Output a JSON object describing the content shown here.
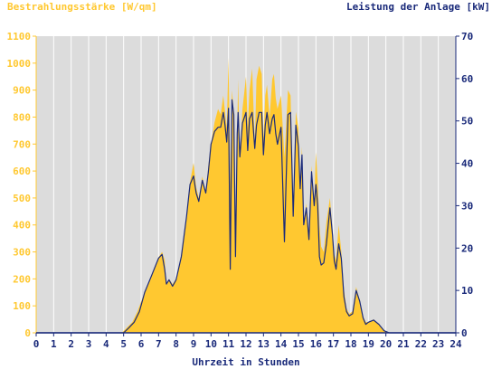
{
  "chart_data": {
    "type": "area",
    "title_left": "Bestrahlungsstärke [W/qm]",
    "title_right": "Leistung der Anlage [kW]",
    "xlabel": "Uhrzeit in Stunden",
    "xlim": [
      0,
      24
    ],
    "ylim_left": [
      0,
      1100
    ],
    "ylim_right": [
      0,
      70
    ],
    "x_ticks": [
      "0",
      "1",
      "2",
      "3",
      "4",
      "5",
      "6",
      "7",
      "8",
      "9",
      "10",
      "11",
      "12",
      "13",
      "14",
      "15",
      "16",
      "17",
      "18",
      "19",
      "20",
      "21",
      "22",
      "23",
      "24"
    ],
    "y_ticks_left": [
      "0",
      "100",
      "200",
      "300",
      "400",
      "500",
      "600",
      "700",
      "800",
      "900",
      "1000",
      "1100"
    ],
    "y_ticks_right": [
      "0",
      "10",
      "20",
      "30",
      "40",
      "50",
      "60",
      "70"
    ],
    "colors": {
      "irradiance": "#ffc830",
      "power": "#1a2a7a",
      "plot_bg": "#dcdcdc",
      "grid": "#ffffff"
    },
    "grid": true,
    "series": [
      {
        "name": "Bestrahlungsstärke [W/qm]",
        "axis": "left",
        "x": [
          0,
          4.9,
          5.2,
          5.5,
          5.8,
          6.2,
          6.6,
          7.0,
          7.2,
          7.35,
          7.45,
          7.6,
          7.8,
          8.0,
          8.3,
          8.6,
          8.8,
          9.0,
          9.15,
          9.3,
          9.5,
          9.7,
          9.85,
          10.0,
          10.2,
          10.4,
          10.55,
          10.7,
          10.8,
          10.9,
          11.0,
          11.1,
          11.2,
          11.3,
          11.4,
          11.5,
          11.55,
          11.65,
          11.8,
          12.0,
          12.1,
          12.2,
          12.35,
          12.5,
          12.6,
          12.75,
          12.9,
          13.0,
          13.1,
          13.2,
          13.35,
          13.5,
          13.6,
          13.7,
          13.8,
          14.0,
          14.2,
          14.4,
          14.55,
          14.7,
          14.85,
          15.0,
          15.1,
          15.2,
          15.3,
          15.45,
          15.6,
          15.75,
          15.9,
          16.0,
          16.1,
          16.2,
          16.3,
          16.45,
          16.6,
          16.8,
          16.95,
          17.05,
          17.15,
          17.3,
          17.45,
          17.6,
          17.75,
          17.9,
          18.1,
          18.3,
          18.5,
          18.7,
          18.85,
          19.0,
          19.3,
          19.6,
          19.9,
          20.2,
          20.4,
          24
        ],
        "values": [
          0,
          0,
          20,
          40,
          80,
          150,
          210,
          280,
          300,
          270,
          180,
          200,
          180,
          200,
          280,
          420,
          560,
          630,
          540,
          500,
          580,
          520,
          620,
          700,
          780,
          830,
          810,
          880,
          820,
          760,
          1020,
          560,
          900,
          820,
          300,
          740,
          940,
          650,
          830,
          950,
          760,
          900,
          980,
          700,
          940,
          990,
          960,
          720,
          880,
          920,
          800,
          940,
          960,
          870,
          830,
          880,
          650,
          900,
          880,
          430,
          820,
          760,
          550,
          690,
          410,
          480,
          360,
          620,
          480,
          670,
          560,
          400,
          320,
          300,
          410,
          500,
          380,
          290,
          270,
          400,
          300,
          160,
          90,
          70,
          80,
          170,
          120,
          60,
          40,
          40,
          50,
          30,
          10,
          0,
          0,
          0
        ]
      },
      {
        "name": "Leistung der Anlage [kW]",
        "axis": "right",
        "x": [
          0,
          5.0,
          5.3,
          5.6,
          5.9,
          6.2,
          6.6,
          7.0,
          7.2,
          7.35,
          7.45,
          7.6,
          7.8,
          8.0,
          8.3,
          8.6,
          8.8,
          9.0,
          9.15,
          9.3,
          9.5,
          9.7,
          9.85,
          10.0,
          10.2,
          10.4,
          10.55,
          10.7,
          10.8,
          10.9,
          11.0,
          11.1,
          11.2,
          11.3,
          11.4,
          11.5,
          11.55,
          11.65,
          11.8,
          12.0,
          12.1,
          12.2,
          12.35,
          12.5,
          12.6,
          12.75,
          12.9,
          13.0,
          13.1,
          13.2,
          13.35,
          13.5,
          13.6,
          13.7,
          13.8,
          14.0,
          14.2,
          14.4,
          14.55,
          14.7,
          14.85,
          15.0,
          15.1,
          15.2,
          15.3,
          15.45,
          15.6,
          15.75,
          15.9,
          16.0,
          16.1,
          16.2,
          16.3,
          16.45,
          16.6,
          16.8,
          16.95,
          17.05,
          17.15,
          17.3,
          17.45,
          17.6,
          17.75,
          17.9,
          18.1,
          18.3,
          18.5,
          18.7,
          18.85,
          19.0,
          19.3,
          19.6,
          19.9,
          20.2,
          20.4,
          24
        ],
        "values": [
          0,
          0,
          1.2,
          2.5,
          5,
          9.5,
          13.5,
          17.6,
          18.5,
          15,
          11.5,
          12.5,
          11,
          12.5,
          18,
          27.5,
          35,
          37,
          33,
          31,
          36,
          33,
          38,
          44.5,
          47.5,
          48.5,
          48.5,
          52,
          49,
          45,
          53,
          15,
          55,
          51.5,
          18,
          47,
          52,
          41.5,
          49.5,
          52,
          43,
          50.5,
          52,
          43.5,
          49,
          52,
          52,
          42,
          49,
          52,
          47,
          50.5,
          51.5,
          47,
          44.5,
          48.5,
          21.5,
          51.5,
          52,
          27.5,
          49,
          44,
          34,
          42,
          25.5,
          29.5,
          22,
          38,
          30,
          35,
          30,
          18,
          16,
          16.5,
          21,
          29.5,
          23,
          17,
          15,
          21,
          17.5,
          8.5,
          5,
          4,
          4.5,
          10,
          7.5,
          3.5,
          2,
          2.5,
          3,
          2,
          0.5,
          0,
          0,
          0
        ]
      }
    ]
  }
}
